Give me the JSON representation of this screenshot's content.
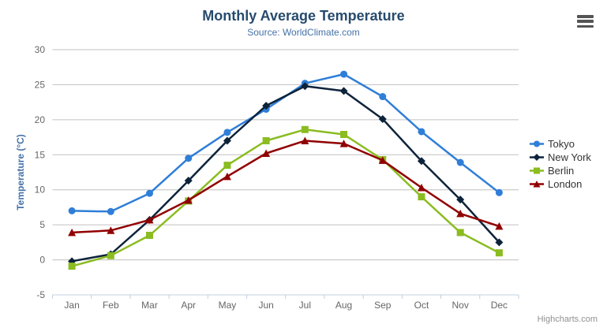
{
  "header": {
    "title": "Monthly Average Temperature",
    "subtitle": "Source: WorldClimate.com"
  },
  "chart_data": {
    "type": "line",
    "title": "Monthly Average Temperature",
    "subtitle": "Source: WorldClimate.com",
    "categories": [
      "Jan",
      "Feb",
      "Mar",
      "Apr",
      "May",
      "Jun",
      "Jul",
      "Aug",
      "Sep",
      "Oct",
      "Nov",
      "Dec"
    ],
    "series": [
      {
        "name": "Tokyo",
        "color": "#2f7ed8",
        "marker": "circle",
        "values": [
          7.0,
          6.9,
          9.5,
          14.5,
          18.2,
          21.5,
          25.2,
          26.5,
          23.3,
          18.3,
          13.9,
          9.6
        ]
      },
      {
        "name": "New York",
        "color": "#0d233a",
        "marker": "diamond",
        "values": [
          -0.2,
          0.8,
          5.7,
          11.3,
          17.0,
          22.0,
          24.8,
          24.1,
          20.1,
          14.1,
          8.6,
          2.5
        ]
      },
      {
        "name": "Berlin",
        "color": "#8bbc21",
        "marker": "square",
        "values": [
          -0.9,
          0.6,
          3.5,
          8.4,
          13.5,
          17.0,
          18.6,
          17.9,
          14.3,
          9.0,
          3.9,
          1.0
        ]
      },
      {
        "name": "London",
        "color": "#910000",
        "marker": "triangle",
        "values": [
          3.9,
          4.2,
          5.7,
          8.5,
          11.9,
          15.2,
          17.0,
          16.6,
          14.2,
          10.3,
          6.6,
          4.8
        ]
      }
    ],
    "xlabel": "",
    "ylabel": "Temperature (°C)",
    "ylim": [
      -5,
      30
    ],
    "ytick_step": 5,
    "yticks": [
      -5,
      0,
      5,
      10,
      15,
      20,
      25,
      30
    ],
    "grid": true,
    "legend_position": "right-middle"
  },
  "colors": {
    "title": "#274b6d",
    "subtitle": "#4572a7",
    "y_axis_title": "#4572a7",
    "axis_label": "#666666",
    "gridline": "#c0c0c0",
    "axis_line": "#c0d0e0",
    "legend_text": "#333333",
    "credits_text": "#909090"
  },
  "credits": {
    "label": "Highcharts.com"
  },
  "export_menu": {
    "icon": "hamburger-icon"
  }
}
